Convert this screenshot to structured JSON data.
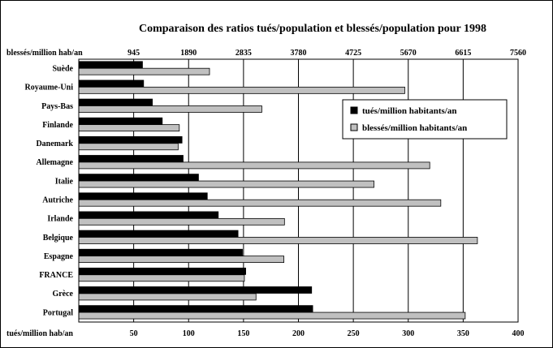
{
  "chart_data": {
    "type": "bar",
    "orientation": "horizontal",
    "title": "Comparaison des ratios tués/population et blessés/population pour 1998",
    "top_axis": {
      "label": "blessés/million hab/an",
      "range": [
        0,
        7560
      ],
      "ticks": [
        "945",
        "1890",
        "2835",
        "3780",
        "4725",
        "5670",
        "6615",
        "7560"
      ]
    },
    "bottom_axis": {
      "label": "tués/million hab/an",
      "range": [
        0,
        400
      ],
      "ticks": [
        "50",
        "100",
        "150",
        "200",
        "250",
        "300",
        "350",
        "400"
      ]
    },
    "categories": [
      "Suède",
      "Royaume-Uni",
      "Pays-Bas",
      "Finlande",
      "Danemark",
      "Allemagne",
      "Italie",
      "Autriche",
      "Irlande",
      "Belgique",
      "Espagne",
      "FRANCE",
      "Grèce",
      "Portugal"
    ],
    "series": [
      {
        "name": "tués/million habitants/an",
        "axis": "bottom",
        "color": "#000000",
        "values": [
          58,
          59,
          67,
          76,
          94,
          95,
          109,
          117,
          127,
          145,
          149,
          152,
          212,
          213
        ]
      },
      {
        "name": "blessés/million habitants/an",
        "axis": "top",
        "color": "#c0c0c0",
        "values": [
          2250,
          5610,
          3150,
          1730,
          1710,
          6040,
          5080,
          6230,
          3540,
          6860,
          3530,
          2850,
          3050,
          6650
        ]
      }
    ],
    "grid": true,
    "legend_position": "right"
  }
}
